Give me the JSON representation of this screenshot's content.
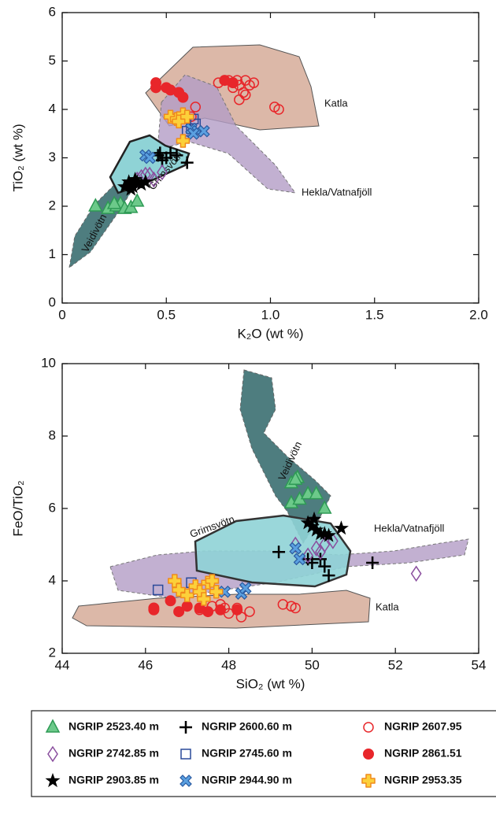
{
  "chart_data": [
    {
      "type": "scatter",
      "x_label": "K₂O (wt %)",
      "y_label": "TiO₂ (wt %)",
      "xlim": [
        0,
        2
      ],
      "ylim": [
        0,
        6
      ],
      "xticks": [
        0,
        0.5,
        {
          "value": 1,
          "label": "1.0"
        },
        1.5,
        {
          "value": 2,
          "label": "2.0"
        }
      ],
      "yticks": [
        0,
        1,
        2,
        3,
        4,
        5,
        6
      ],
      "annotations": [
        "Katla",
        "Hekla/Vatnafjöll",
        "Grimsvötn",
        "Veidivötn"
      ],
      "series": [
        {
          "x": [
            0.16,
            0.22,
            0.26,
            0.28,
            0.3,
            0.33,
            0.36,
            0.25
          ],
          "values": [
            2.0,
            1.95,
            2.0,
            2.05,
            1.95,
            1.97,
            2.1,
            2.05
          ]
        },
        {
          "x": [
            0.46,
            0.48,
            0.5,
            0.52,
            0.55,
            0.6,
            0.47
          ],
          "values": [
            3.05,
            2.95,
            3.0,
            3.1,
            3.05,
            2.9,
            3.1
          ]
        },
        {
          "x": [
            0.64,
            0.75,
            0.8,
            0.82,
            0.85,
            0.87,
            0.88,
            0.9,
            0.92,
            0.85,
            0.88,
            1.02,
            1.04,
            0.62,
            0.84
          ],
          "values": [
            4.05,
            4.55,
            4.6,
            4.45,
            4.5,
            4.35,
            4.6,
            4.5,
            4.55,
            4.2,
            4.3,
            4.05,
            4.0,
            3.85,
            4.6
          ]
        },
        {
          "x": [
            0.38,
            0.4,
            0.42,
            0.44,
            0.48,
            0.36
          ],
          "values": [
            2.6,
            2.65,
            2.65,
            2.55,
            2.7,
            2.55
          ]
        },
        {
          "x": [
            0.62,
            0.63,
            0.64,
            0.6
          ],
          "values": [
            3.6,
            3.8,
            3.7,
            3.55
          ]
        },
        {
          "x": [
            0.45,
            0.45,
            0.5,
            0.52,
            0.56,
            0.58,
            0.78,
            0.82
          ],
          "values": [
            4.55,
            4.45,
            4.45,
            4.4,
            4.35,
            4.25,
            4.6,
            4.55
          ]
        },
        {
          "x": [
            0.32,
            0.34,
            0.33,
            0.36,
            0.38,
            0.4,
            0.35,
            0.3
          ],
          "values": [
            2.5,
            2.4,
            2.35,
            2.5,
            2.45,
            2.5,
            2.55,
            2.4
          ]
        },
        {
          "x": [
            0.4,
            0.42,
            0.62,
            0.65,
            0.68,
            0.63
          ],
          "values": [
            3.05,
            3.0,
            3.6,
            3.55,
            3.55,
            3.5
          ]
        },
        {
          "x": [
            0.52,
            0.55,
            0.58,
            0.58,
            0.56,
            0.6
          ],
          "values": [
            3.85,
            3.8,
            3.9,
            3.35,
            3.75,
            3.85
          ]
        }
      ]
    },
    {
      "type": "scatter",
      "x_label": "SiO₂ (wt %)",
      "y_label": "FeO/TiO₂",
      "xlim": [
        44,
        54
      ],
      "ylim": [
        2,
        10
      ],
      "xticks": [
        44,
        46,
        48,
        50,
        52,
        54
      ],
      "yticks": [
        2,
        4,
        6,
        8,
        10
      ],
      "annotations": [
        "Veidivötn",
        "Grimsvötn",
        "Hekla/Vatnafjöll",
        "Katla"
      ],
      "series": [
        {
          "x": [
            49.5,
            49.65,
            49.5,
            49.7,
            49.9,
            50.1,
            50.3,
            49.6
          ],
          "values": [
            6.7,
            6.85,
            6.15,
            6.25,
            6.4,
            6.4,
            6.0,
            6.8
          ]
        },
        {
          "x": [
            49.2,
            49.9,
            50.2,
            50.3,
            50.4,
            51.45,
            50.0
          ],
          "values": [
            4.8,
            4.6,
            4.6,
            4.4,
            4.15,
            4.5,
            4.5
          ]
        },
        {
          "x": [
            47.3,
            47.6,
            47.9,
            48.0,
            48.2,
            48.3,
            48.5,
            49.3,
            49.5,
            49.6,
            47.8
          ],
          "values": [
            3.2,
            3.3,
            3.25,
            3.1,
            3.25,
            3.0,
            3.15,
            3.35,
            3.3,
            3.25,
            3.35
          ]
        },
        {
          "x": [
            49.6,
            49.9,
            50.1,
            50.3,
            50.5,
            52.5,
            50.2
          ],
          "values": [
            5.0,
            4.7,
            4.9,
            5.0,
            5.1,
            4.2,
            4.8
          ]
        },
        {
          "x": [
            46.3,
            47.1
          ],
          "values": [
            3.75,
            3.95
          ]
        },
        {
          "x": [
            46.2,
            46.2,
            46.6,
            46.8,
            47.0,
            47.3,
            47.5,
            47.8,
            48.2
          ],
          "values": [
            3.25,
            3.2,
            3.45,
            3.15,
            3.3,
            3.25,
            3.15,
            3.2,
            3.2
          ]
        },
        {
          "x": [
            49.9,
            50.0,
            50.1,
            50.2,
            50.3,
            50.4,
            50.7,
            50.05
          ],
          "values": [
            5.6,
            5.5,
            5.4,
            5.3,
            5.3,
            5.25,
            5.45,
            5.7
          ]
        },
        {
          "x": [
            47.9,
            48.3,
            48.4,
            49.6,
            49.7
          ],
          "values": [
            3.7,
            3.65,
            3.8,
            4.9,
            4.6
          ]
        },
        {
          "x": [
            46.7,
            46.8,
            47.0,
            47.2,
            47.3,
            47.5,
            47.6,
            47.4,
            47.7
          ],
          "values": [
            4.0,
            3.75,
            3.6,
            3.85,
            3.7,
            3.95,
            4.0,
            3.5,
            3.7
          ]
        }
      ]
    }
  ],
  "legend": {
    "entries": [
      {
        "name": "NGRIP 2523.40 m",
        "marker": "triangle",
        "color": "#6cc98a",
        "edgecolor": "#2e9a55"
      },
      {
        "name": "NGRIP 2600.60 m",
        "marker": "plus",
        "color": "#000000",
        "edgecolor": "#000000"
      },
      {
        "name": "NGRIP 2607.95",
        "marker": "circle-open",
        "color": "#e8262a",
        "edgecolor": "#e8262a"
      },
      {
        "name": "NGRIP 2742.85 m",
        "marker": "diamond-open",
        "color": "#8a4e9e",
        "edgecolor": "#8a4e9e"
      },
      {
        "name": "NGRIP 2745.60 m",
        "marker": "square-open",
        "color": "#2a4a9a",
        "edgecolor": "#2a4a9a"
      },
      {
        "name": "NGRIP 2861.51",
        "marker": "circle",
        "color": "#e8262a",
        "edgecolor": "#e8262a"
      },
      {
        "name": "NGRIP 2903.85 m",
        "marker": "star",
        "color": "#000000",
        "edgecolor": "#000000"
      },
      {
        "name": "NGRIP 2944.90 m",
        "marker": "x",
        "color": "#5aa0e0",
        "edgecolor": "#2a5aa0"
      },
      {
        "name": "NGRIP 2953.35",
        "marker": "cross",
        "color": "#fcd03a",
        "edgecolor": "#f08a1c"
      }
    ]
  }
}
